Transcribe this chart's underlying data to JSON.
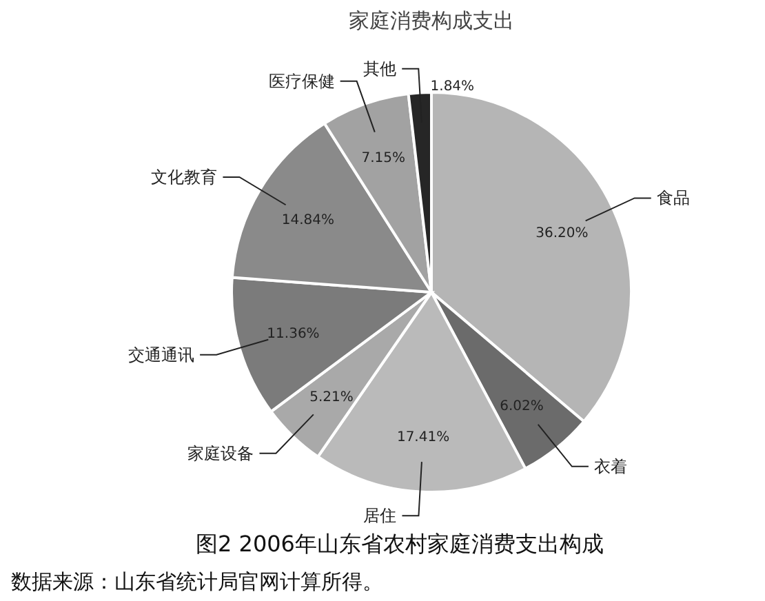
{
  "chart_data": {
    "type": "pie",
    "title": "家庭消费构成支出",
    "categories": [
      "食品",
      "衣着",
      "居住",
      "家庭设备",
      "交通通讯",
      "文化教育",
      "医疗保健",
      "其他"
    ],
    "values": [
      36.2,
      6.02,
      17.41,
      5.21,
      11.36,
      14.84,
      7.15,
      1.84
    ],
    "value_labels": [
      "36.20%",
      "6.02%",
      "17.41%",
      "5.21%",
      "11.36%",
      "14.84%",
      "7.15%",
      "1.84%"
    ],
    "colors": [
      "#b5b5b5",
      "#6b6b6b",
      "#bababa",
      "#a9a9a9",
      "#7b7b7b",
      "#8a8a8a",
      "#a2a2a2",
      "#262626"
    ],
    "annotations": [
      "图2  2006年山东省农村家庭消费支出构成",
      "数据来源：山东省统计局官网计算所得。"
    ]
  }
}
